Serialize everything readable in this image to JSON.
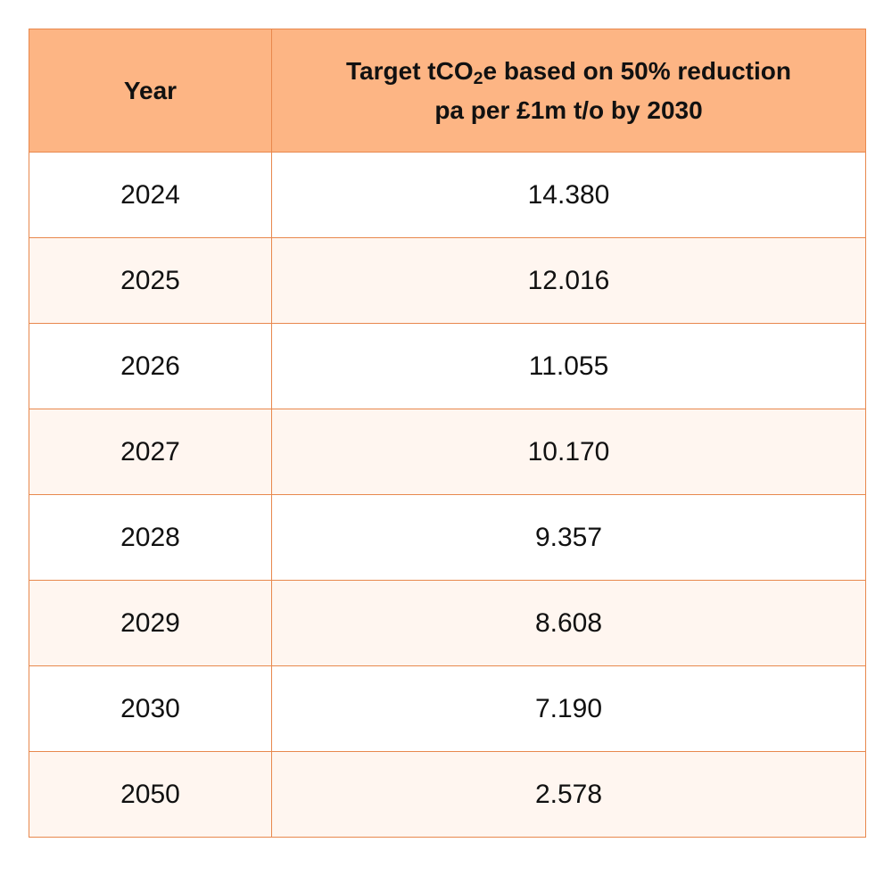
{
  "table": {
    "headers": {
      "year": "Year",
      "target_line1_a": "Target tCO",
      "target_line1_sub": "2",
      "target_line1_b": "e based on 50% reduction",
      "target_line2": "pa per £1m t/o by 2030"
    },
    "rows": [
      {
        "year": "2024",
        "target": "14.380"
      },
      {
        "year": "2025",
        "target": "12.016"
      },
      {
        "year": "2026",
        "target": "11.055"
      },
      {
        "year": "2027",
        "target": "10.170"
      },
      {
        "year": "2028",
        "target": "9.357"
      },
      {
        "year": "2029",
        "target": "8.608"
      },
      {
        "year": "2030",
        "target": "7.190"
      },
      {
        "year": "2050",
        "target": "2.578"
      }
    ]
  },
  "colors": {
    "header_bg": "#fdb584",
    "border": "#e8884d",
    "alt_row_bg": "#fff6f0"
  }
}
